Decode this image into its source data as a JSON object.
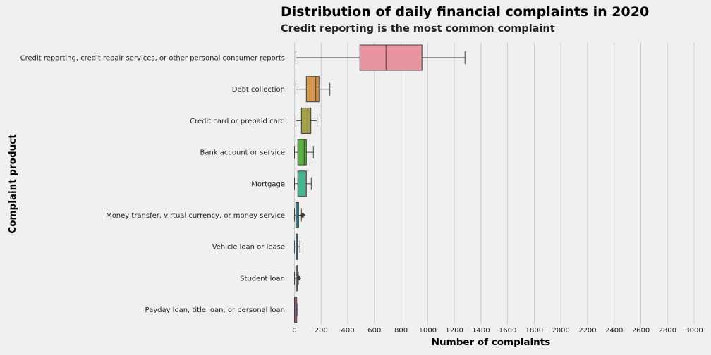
{
  "chart_data": {
    "type": "box",
    "orientation": "horizontal",
    "title": "Distribution of daily financial complaints in 2020",
    "subtitle": "Credit reporting is the most common complaint",
    "xlabel": "Number of complaints",
    "ylabel": "Complaint product",
    "xlim": [
      0,
      3000
    ],
    "xticks": [
      0,
      200,
      400,
      600,
      800,
      1000,
      1200,
      1400,
      1600,
      1800,
      2000,
      2200,
      2400,
      2600,
      2800,
      3000
    ],
    "grid": "vertical",
    "categories": [
      {
        "label": "Credit reporting, credit repair services, or other personal consumer reports",
        "min": 10,
        "q1": 491,
        "median": 687,
        "q3": 957,
        "max": 1280,
        "outliers": [],
        "color": "#e8949f"
      },
      {
        "label": "Debt collection",
        "min": 10,
        "q1": 89,
        "median": 160,
        "q3": 184,
        "max": 266,
        "outliers": [],
        "color": "#d4974f"
      },
      {
        "label": "Credit card or prepaid card",
        "min": 10,
        "q1": 52,
        "median": 100,
        "q3": 123,
        "max": 170,
        "outliers": [],
        "color": "#a3a047"
      },
      {
        "label": "Bank account or service",
        "min": 0,
        "q1": 25,
        "median": 73,
        "q3": 89,
        "max": 142,
        "outliers": [],
        "color": "#5bb043"
      },
      {
        "label": "Mortgage",
        "min": 0,
        "q1": 25,
        "median": 80,
        "q3": 89,
        "max": 126,
        "outliers": [],
        "color": "#47b390"
      },
      {
        "label": "Money transfer, virtual currency, or money service",
        "min": 0,
        "q1": 10,
        "median": 19,
        "q3": 31,
        "max": 52,
        "outliers": [
          59,
          62,
          65
        ],
        "color": "#3aaeb8"
      },
      {
        "label": "Vehicle loan or lease",
        "min": 0,
        "q1": 12,
        "median": 19,
        "q3": 25,
        "max": 41,
        "outliers": [],
        "color": "#4aa0de"
      },
      {
        "label": "Student loan",
        "min": 0,
        "q1": 10,
        "median": 13,
        "q3": 19,
        "max": 29,
        "outliers": [
          33,
          35
        ],
        "color": "#a68be0"
      },
      {
        "label": "Payday loan, title loan, or personal loan",
        "min": 0,
        "q1": 0,
        "median": 8,
        "q3": 17,
        "max": 24,
        "outliers": [],
        "color": "#d97fc8"
      }
    ]
  }
}
